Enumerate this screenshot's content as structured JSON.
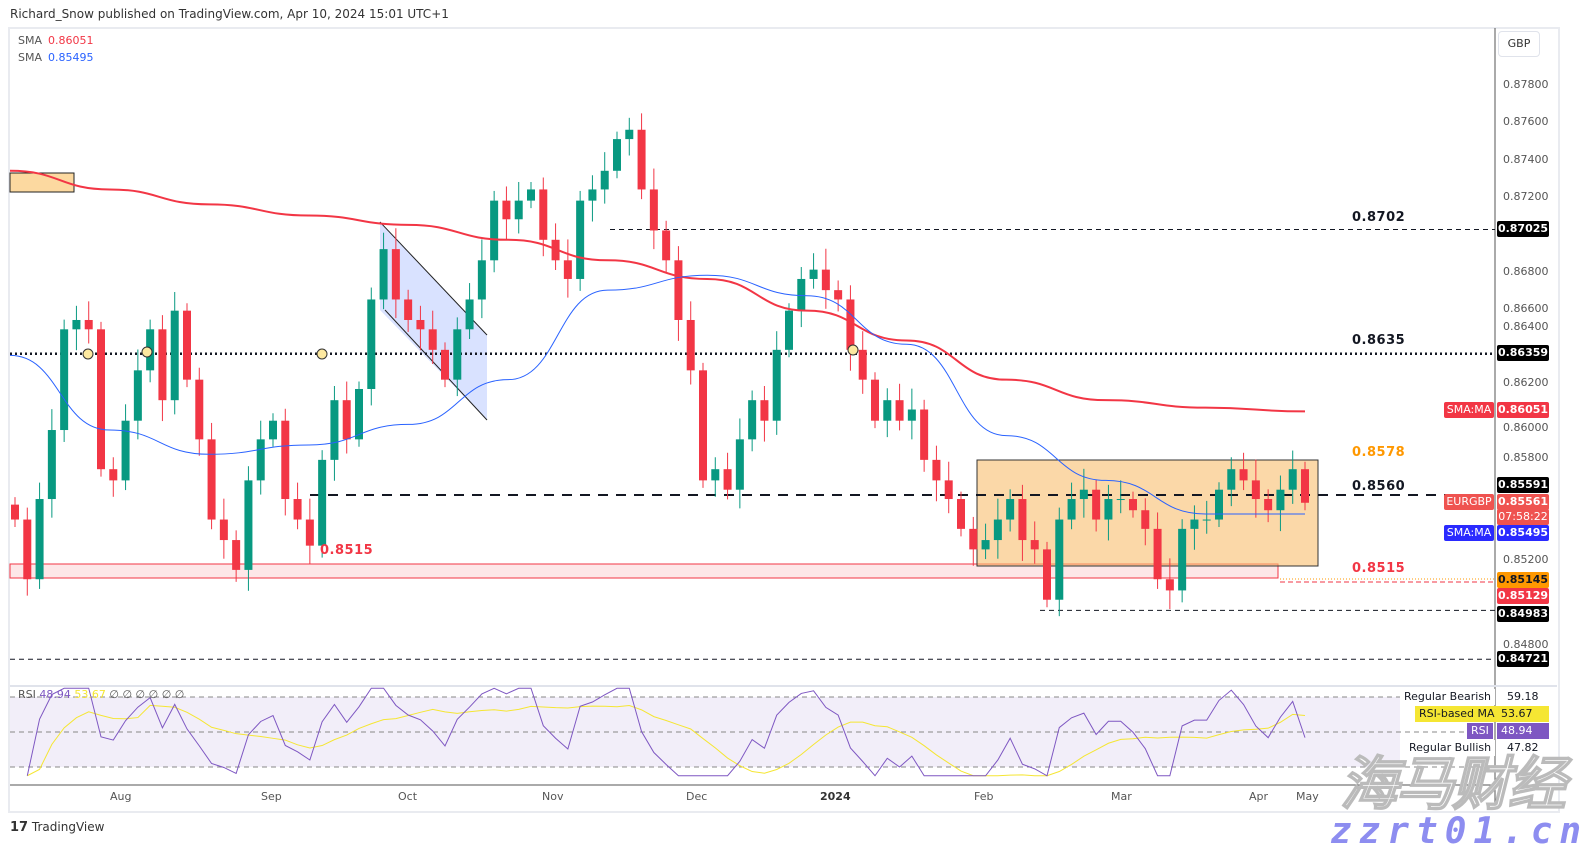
{
  "header": "Richard_Snow published on TradingView.com, Apr 10, 2024 15:01 UTC+1",
  "legend": [
    {
      "label": "SMA",
      "value": "0.86051",
      "color": "#f23645"
    },
    {
      "label": "SMA",
      "value": "0.85495",
      "color": "#2962ff"
    }
  ],
  "currency": "GBP",
  "chart_data": {
    "type": "candlestick",
    "symbol": "EURGBP",
    "ylim": [
      0.8465,
      0.8795
    ],
    "yticks": [
      "0.87800",
      "0.87600",
      "0.87400",
      "0.87200",
      "0.86800",
      "0.86600",
      "0.86400",
      "0.86200",
      "0.86000",
      "0.85800",
      "0.85200",
      "0.84800"
    ],
    "ytick_values": [
      0.878,
      0.876,
      0.874,
      0.872,
      0.868,
      0.866,
      0.864,
      0.862,
      0.86,
      0.858,
      0.852,
      0.848
    ],
    "xticks": [
      "Aug",
      "Sep",
      "Oct",
      "Nov",
      "Dec",
      "2024",
      "Feb",
      "Mar",
      "Apr",
      "May"
    ],
    "closes": [
      0.8547,
      0.8515,
      0.8558,
      0.8595,
      0.8649,
      0.8654,
      0.8649,
      0.8574,
      0.8568,
      0.86,
      0.8627,
      0.8649,
      0.8611,
      0.8659,
      0.8622,
      0.859,
      0.8547,
      0.8536,
      0.852,
      0.8568,
      0.859,
      0.86,
      0.8558,
      0.8547,
      0.8533,
      0.8579,
      0.8611,
      0.859,
      0.8617,
      0.8665,
      0.8692,
      0.8665,
      0.8654,
      0.8649,
      0.8638,
      0.8622,
      0.8649,
      0.8665,
      0.8686,
      0.8718,
      0.8708,
      0.8718,
      0.8724,
      0.8697,
      0.8686,
      0.8676,
      0.8718,
      0.8724,
      0.8734,
      0.8751,
      0.8756,
      0.8724,
      0.8702,
      0.8686,
      0.8654,
      0.8627,
      0.8568,
      0.8574,
      0.8563,
      0.859,
      0.8611,
      0.86,
      0.8638,
      0.8659,
      0.8676,
      0.8681,
      0.867,
      0.8665,
      0.8638,
      0.8622,
      0.86,
      0.8611,
      0.86,
      0.8606,
      0.8579,
      0.8568,
      0.8558,
      0.8542,
      0.8531,
      0.8536,
      0.8547,
      0.8558,
      0.8536,
      0.8531,
      0.8504,
      0.8547,
      0.8558,
      0.8563,
      0.8547,
      0.8558,
      0.8558,
      0.8552,
      0.8542,
      0.8515,
      0.8509,
      0.8542,
      0.8547,
      0.8547,
      0.8563,
      0.8574,
      0.8568,
      0.8558,
      0.8552,
      0.8563,
      0.8574,
      0.8556
    ],
    "sma_200": [
      0.8734,
      0.8724,
      0.8716,
      0.871,
      0.8705,
      0.8697,
      0.8686,
      0.8676,
      0.8659,
      0.8643,
      0.8622,
      0.8611,
      0.8607,
      0.8605
    ],
    "sma_50": [
      0.8635,
      0.8595,
      0.8582,
      0.8587,
      0.8598,
      0.8622,
      0.867,
      0.8678,
      0.8667,
      0.8641,
      0.8592,
      0.8568,
      0.855,
      0.855
    ],
    "colors": {
      "up": "#089981",
      "down": "#f23645",
      "sma_200": "#f23645",
      "sma_50": "#2962ff",
      "rsi": "#7e57c2",
      "rsi_ma": "#f5e633"
    },
    "levels": [
      {
        "label": "0.8702",
        "price": 0.8702,
        "style": "dashed",
        "color": "#131722"
      },
      {
        "label": "0.8635",
        "price": 0.8635,
        "style": "dotted",
        "color": "#131722"
      },
      {
        "label": "0.8578",
        "price": 0.8578,
        "style": "none",
        "color": "#ff9800"
      },
      {
        "label": "0.8560",
        "price": 0.856,
        "style": "dashed",
        "color": "#131722"
      },
      {
        "label": "0.8515",
        "price": 0.8515,
        "style": "zone",
        "color": "#f23645"
      }
    ],
    "price_badges": [
      {
        "value": "0.87025",
        "color": "#000000"
      },
      {
        "value": "0.86359",
        "color": "#000000"
      },
      {
        "tag": "SMA:MA",
        "value": "0.86051",
        "color": "#f23645"
      },
      {
        "value": "0.85591",
        "color": "#000000"
      },
      {
        "tag": "EURGBP",
        "value": "0.85561",
        "countdown": "07:58:22",
        "color": "#ef5350"
      },
      {
        "tag": "SMA:MA",
        "value": "0.85495",
        "color": "#2a2aff"
      },
      {
        "value": "0.85145",
        "color": "#ff9800"
      },
      {
        "value": "0.85129",
        "color": "#f23645"
      },
      {
        "value": "0.84983",
        "color": "#000000"
      },
      {
        "value": "0.84721",
        "color": "#000000"
      }
    ],
    "rsi": {
      "legend_label": "RSI",
      "value": "48.94",
      "ma_value": "53.67",
      "extras": "∅ ∅ ∅ ∅ ∅ ∅",
      "labels": [
        {
          "label": "Regular Bearish",
          "value": "59.18"
        },
        {
          "label": "RSI-based MA",
          "value": "53.67"
        },
        {
          "label": "RSI",
          "value": "48.94"
        },
        {
          "label": "Regular Bullish",
          "value": "47.82"
        }
      ],
      "bands": [
        70,
        50,
        30
      ]
    }
  },
  "watermark": {
    "cn": "海马财经",
    "url": "zzrt01.cn"
  },
  "footer": "TradingView"
}
